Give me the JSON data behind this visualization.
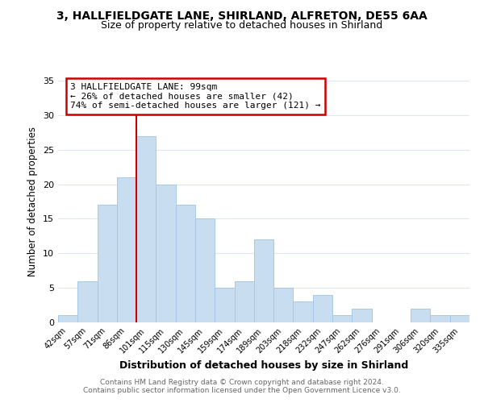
{
  "title1": "3, HALLFIELDGATE LANE, SHIRLAND, ALFRETON, DE55 6AA",
  "title2": "Size of property relative to detached houses in Shirland",
  "xlabel": "Distribution of detached houses by size in Shirland",
  "ylabel": "Number of detached properties",
  "bar_labels": [
    "42sqm",
    "57sqm",
    "71sqm",
    "86sqm",
    "101sqm",
    "115sqm",
    "130sqm",
    "145sqm",
    "159sqm",
    "174sqm",
    "189sqm",
    "203sqm",
    "218sqm",
    "232sqm",
    "247sqm",
    "262sqm",
    "276sqm",
    "291sqm",
    "306sqm",
    "320sqm",
    "335sqm"
  ],
  "bar_values": [
    1,
    6,
    17,
    21,
    27,
    20,
    17,
    15,
    5,
    6,
    12,
    5,
    3,
    4,
    1,
    2,
    0,
    0,
    2,
    1,
    1
  ],
  "bar_color": "#c9ddf0",
  "bar_edge_color": "#a8c8e8",
  "vline_index": 4,
  "vline_color": "#cc0000",
  "annotation_title": "3 HALLFIELDGATE LANE: 99sqm",
  "annotation_line1": "← 26% of detached houses are smaller (42)",
  "annotation_line2": "74% of semi-detached houses are larger (121) →",
  "annotation_box_color": "#ffffff",
  "annotation_box_edge": "#cc0000",
  "ylim": [
    0,
    35
  ],
  "yticks": [
    0,
    5,
    10,
    15,
    20,
    25,
    30,
    35
  ],
  "footer1": "Contains HM Land Registry data © Crown copyright and database right 2024.",
  "footer2": "Contains public sector information licensed under the Open Government Licence v3.0.",
  "bg_color": "#ffffff",
  "grid_color": "#dce8f5"
}
